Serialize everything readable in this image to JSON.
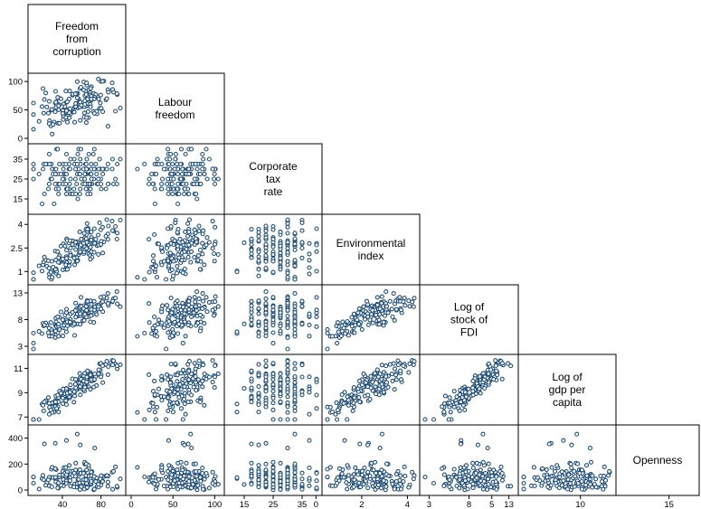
{
  "chart_data": {
    "type": "scatter",
    "subtype": "scatterplot-matrix-lower-triangle",
    "title": "",
    "variables": [
      {
        "name": "Freedom from corruption",
        "lines": [
          "Freedom",
          "from",
          "corruption"
        ],
        "range": [
          10,
          100
        ],
        "ticks": [
          40,
          80
        ]
      },
      {
        "name": "Labour freedom",
        "lines": [
          "Labour",
          "freedom"
        ],
        "range": [
          0,
          105
        ],
        "ticks": [
          0,
          50,
          100
        ]
      },
      {
        "name": "Corporate tax rate",
        "lines": [
          "Corporate",
          "tax",
          "rate"
        ],
        "range": [
          10,
          40
        ],
        "ticks": [
          15,
          25,
          35
        ]
      },
      {
        "name": "Environmental index",
        "lines": [
          "Environmental",
          "index"
        ],
        "range": [
          0.5,
          4.3
        ],
        "ticks": [
          1,
          2.5,
          4
        ],
        "x_ticks": [
          0,
          2,
          4
        ]
      },
      {
        "name": "Log of stock of FDI",
        "lines": [
          "Log of",
          "stock of",
          "FDI"
        ],
        "range": [
          2.5,
          13.5
        ],
        "ticks": [
          3,
          8,
          13
        ]
      },
      {
        "name": "Log of gdp per capita",
        "lines": [
          "Log of",
          "gdp per",
          "capita"
        ],
        "range": [
          6.8,
          11.7
        ],
        "ticks": [
          7,
          9,
          11
        ],
        "x_ticks": [
          5,
          10,
          15
        ]
      },
      {
        "name": "Openness",
        "lines": [
          "Openness"
        ],
        "range": [
          0,
          460
        ],
        "ticks": [
          0,
          200,
          400
        ]
      }
    ],
    "y_tick_labels": {
      "1": [
        "0",
        "50",
        "100"
      ],
      "2": [
        "15",
        "25",
        "35"
      ],
      "3": [
        "1",
        "2.5",
        "4"
      ],
      "4": [
        "3",
        "8",
        "13"
      ],
      "5": [
        "7",
        "9",
        "11"
      ],
      "6": [
        "0",
        "200",
        "400"
      ]
    },
    "x_tick_labels": {
      "0": [
        "40",
        "80"
      ],
      "1": [
        "0",
        "50",
        "100"
      ],
      "2": [
        "15",
        "25",
        "35"
      ],
      "3": [
        "0",
        "2",
        "4"
      ],
      "4": [
        "3",
        "8",
        "13"
      ],
      "5": [
        "5",
        "10",
        "15"
      ]
    },
    "marker": "hollow-circle",
    "colors": {
      "marker_stroke": "#1f4e79",
      "frame": "#000000"
    },
    "grid": false,
    "n_observations_approx": 150
  }
}
